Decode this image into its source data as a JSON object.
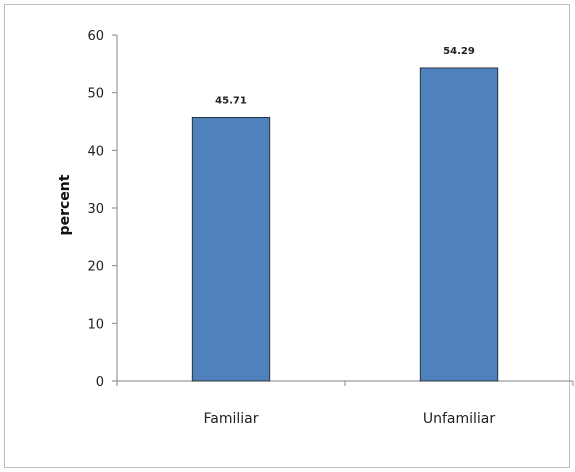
{
  "chart_data": {
    "type": "bar",
    "categories": [
      "Familiar",
      "Unfamiliar"
    ],
    "values": [
      45.71,
      54.29
    ],
    "data_labels": [
      "45.71",
      "54.29"
    ],
    "title": "",
    "xlabel": "",
    "ylabel": "percent",
    "ylim": [
      0,
      60
    ],
    "yticks": [
      0,
      10,
      20,
      30,
      40,
      50,
      60
    ],
    "ytick_labels": [
      "0",
      "10",
      "20",
      "30",
      "40",
      "50",
      "60"
    ],
    "grid": false,
    "legend": "none",
    "bar_color": "#4f81bd",
    "bar_edge_color": "#1f1f1f"
  }
}
